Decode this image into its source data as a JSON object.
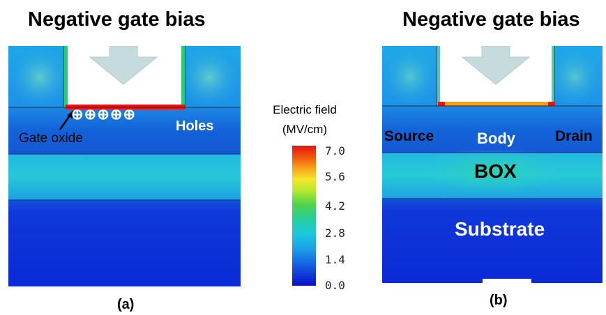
{
  "titles": {
    "a": "Negative gate bias",
    "b": "Negative gate bias"
  },
  "captions": {
    "a": "(a)",
    "b": "(b)"
  },
  "panel_a": {
    "holes_label": "Holes",
    "gate_oxide_label": "Gate oxide",
    "hole_symbols": [
      "⊕",
      "⊕",
      "⊕",
      "⊕",
      "⊕"
    ]
  },
  "panel_b": {
    "source_label": "Source",
    "body_label": "Body",
    "drain_label": "Drain",
    "box_label": "BOX",
    "substrate_label": "Substrate"
  },
  "legend": {
    "title_line1": "Electric field",
    "title_line2": "(MV/cm)",
    "ticks": [
      "7.0",
      "5.6",
      "4.2",
      "2.8",
      "1.4",
      "0.0"
    ]
  },
  "colors": {
    "arrow": "#c6dcdc",
    "oxide": "#e8120e",
    "deep_blue": "#0a2ad8",
    "box_cyan": "#22c8d6",
    "body_blue": "#1680e6"
  }
}
